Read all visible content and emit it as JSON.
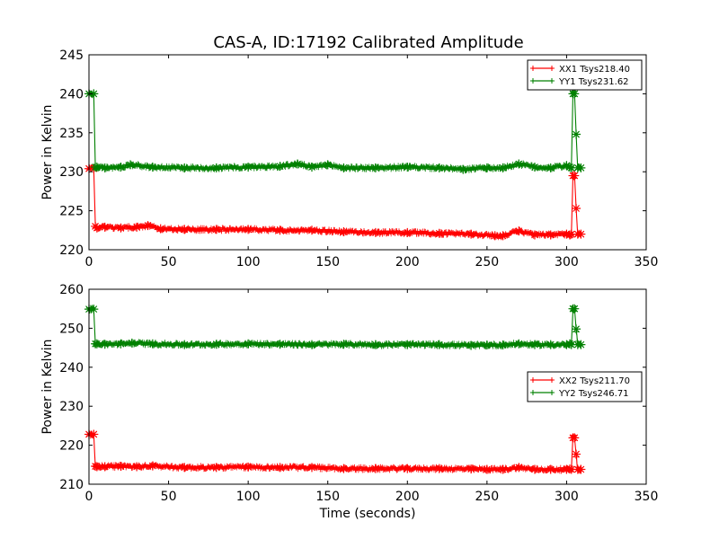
{
  "title": "CAS-A, ID:17192 Calibrated Amplitude",
  "chart_data": [
    {
      "type": "line",
      "title": "CAS-A, ID:17192 Calibrated Amplitude",
      "xlabel": "",
      "ylabel": "Power in Kelvin",
      "xlim": [
        0,
        350
      ],
      "ylim": [
        220,
        245
      ],
      "xticks": [
        0,
        50,
        100,
        150,
        200,
        250,
        300,
        350
      ],
      "yticks": [
        220,
        225,
        230,
        235,
        240,
        245
      ],
      "grid": false,
      "legend_position": "top-right",
      "series": [
        {
          "name": "XX1 Tsys218.40",
          "color": "#ff0000",
          "marker": "+",
          "x": [
            0,
            3,
            4,
            5,
            10,
            20,
            30,
            37,
            45,
            60,
            80,
            100,
            120,
            140,
            160,
            180,
            200,
            220,
            240,
            255,
            260,
            270,
            280,
            290,
            300,
            302,
            303,
            304,
            305,
            306,
            307,
            309
          ],
          "y": [
            230.4,
            230.4,
            223.0,
            222.8,
            222.9,
            222.8,
            222.9,
            223.1,
            222.7,
            222.6,
            222.6,
            222.6,
            222.5,
            222.5,
            222.3,
            222.2,
            222.2,
            222.1,
            222.0,
            221.8,
            221.8,
            222.4,
            221.9,
            221.9,
            222.0,
            221.9,
            222.0,
            229.5,
            229.5,
            225.3,
            222.0,
            222.0
          ]
        },
        {
          "name": "YY1 Tsys231.62",
          "color": "#008000",
          "marker": "+",
          "x": [
            0,
            3,
            4,
            5,
            10,
            20,
            26,
            40,
            60,
            80,
            100,
            120,
            131,
            140,
            150,
            160,
            180,
            200,
            220,
            235,
            250,
            260,
            270,
            280,
            290,
            300,
            302,
            303,
            304,
            305,
            306,
            307,
            309
          ],
          "y": [
            240.0,
            240.0,
            230.6,
            230.6,
            230.5,
            230.6,
            230.9,
            230.6,
            230.5,
            230.5,
            230.6,
            230.7,
            231.0,
            230.6,
            230.9,
            230.5,
            230.5,
            230.6,
            230.5,
            230.3,
            230.5,
            230.5,
            231.0,
            230.6,
            230.5,
            230.8,
            230.6,
            230.5,
            240.0,
            240.0,
            234.8,
            230.5,
            230.5
          ]
        }
      ]
    },
    {
      "type": "line",
      "title": "",
      "xlabel": "Time (seconds)",
      "ylabel": "Power in Kelvin",
      "xlim": [
        0,
        350
      ],
      "ylim": [
        210,
        260
      ],
      "xticks": [
        0,
        50,
        100,
        150,
        200,
        250,
        300,
        350
      ],
      "yticks": [
        210,
        220,
        230,
        240,
        250,
        260
      ],
      "grid": false,
      "legend_position": "center-right",
      "series": [
        {
          "name": "XX2 Tsys211.70",
          "color": "#ff0000",
          "marker": "+",
          "x": [
            0,
            3,
            4,
            5,
            10,
            20,
            30,
            40,
            60,
            80,
            100,
            120,
            140,
            160,
            180,
            200,
            220,
            240,
            250,
            260,
            270,
            280,
            290,
            300,
            302,
            303,
            304,
            305,
            306,
            307,
            309
          ],
          "y": [
            222.8,
            222.8,
            214.6,
            214.5,
            214.5,
            214.6,
            214.5,
            214.7,
            214.3,
            214.3,
            214.4,
            214.3,
            214.3,
            214.0,
            214.0,
            214.0,
            214.0,
            213.9,
            213.8,
            213.8,
            214.3,
            213.8,
            213.8,
            213.8,
            213.9,
            213.8,
            221.9,
            221.9,
            217.7,
            213.8,
            213.8
          ]
        },
        {
          "name": "YY2 Tsys246.71",
          "color": "#008000",
          "marker": "+",
          "x": [
            0,
            3,
            4,
            5,
            10,
            20,
            27,
            40,
            60,
            80,
            100,
            120,
            140,
            160,
            180,
            200,
            220,
            240,
            250,
            260,
            270,
            280,
            290,
            300,
            302,
            303,
            304,
            305,
            306,
            307,
            309
          ],
          "y": [
            254.9,
            254.9,
            246.0,
            246.0,
            245.9,
            246.0,
            246.2,
            246.0,
            245.8,
            245.9,
            246.0,
            245.9,
            245.8,
            245.9,
            245.8,
            245.8,
            245.8,
            245.6,
            245.7,
            245.7,
            246.0,
            245.8,
            245.8,
            245.8,
            246.0,
            245.8,
            255.0,
            255.0,
            249.8,
            245.8,
            245.8
          ]
        }
      ]
    }
  ]
}
